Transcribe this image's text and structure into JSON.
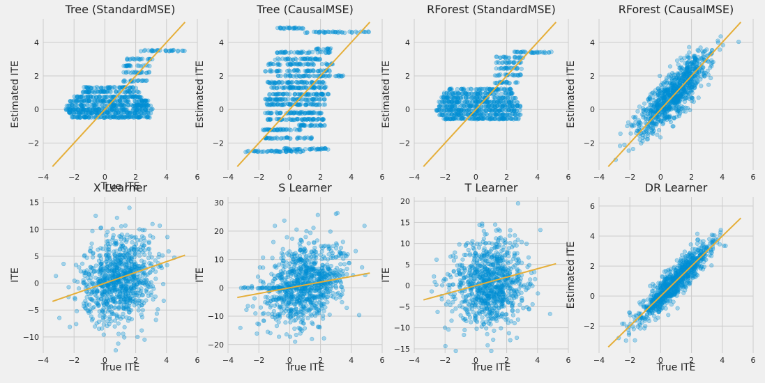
{
  "chart_data": [
    {
      "type": "scatter",
      "title": "Tree (StandardMSE)",
      "xlabel": "True ITE",
      "ylabel": "Estimated ITE",
      "xlim": [
        -4,
        6
      ],
      "ylim": [
        -3.6,
        5.4
      ],
      "xticks": [
        -4,
        -2,
        0,
        2,
        4,
        6
      ],
      "yticks": [
        -2,
        0,
        2,
        4
      ],
      "reference_line": {
        "x": [
          -3.4,
          5.2
        ],
        "y": [
          -3.4,
          5.2
        ]
      },
      "pattern": "banded",
      "bands": [
        {
          "y": -0.45,
          "xmin": -2.2,
          "xmax": 3.0,
          "n": 110
        },
        {
          "y": -0.2,
          "xmin": -2.4,
          "xmax": 3.0,
          "n": 110
        },
        {
          "y": 0.0,
          "xmin": -2.6,
          "xmax": 3.1,
          "n": 120
        },
        {
          "y": 0.25,
          "xmin": -2.5,
          "xmax": 3.0,
          "n": 110
        },
        {
          "y": 0.5,
          "xmin": -2.4,
          "xmax": 2.8,
          "n": 100
        },
        {
          "y": 0.75,
          "xmin": -2.1,
          "xmax": 2.5,
          "n": 80
        },
        {
          "y": 1.05,
          "xmin": -1.6,
          "xmax": 2.3,
          "n": 60
        },
        {
          "y": 1.3,
          "xmin": -1.4,
          "xmax": 2.1,
          "n": 50
        },
        {
          "y": 1.7,
          "xmin": 1.2,
          "xmax": 2.9,
          "n": 20
        },
        {
          "y": 2.2,
          "xmin": 1.2,
          "xmax": 2.9,
          "n": 20
        },
        {
          "y": 2.6,
          "xmin": 1.2,
          "xmax": 3.0,
          "n": 20
        },
        {
          "y": 3.0,
          "xmin": 1.3,
          "xmax": 3.1,
          "n": 20
        },
        {
          "y": 3.5,
          "xmin": 2.3,
          "xmax": 5.2,
          "n": 30
        }
      ]
    },
    {
      "type": "scatter",
      "title": "Tree (CausalMSE)",
      "xlabel": "",
      "ylabel": "Estimated ITE",
      "xlim": [
        -4,
        6
      ],
      "ylim": [
        -3.6,
        5.4
      ],
      "xticks": [
        -4,
        -2,
        0,
        2,
        4,
        6
      ],
      "yticks": [
        -2,
        0,
        2,
        4
      ],
      "reference_line": {
        "x": [
          -3.4,
          5.2
        ],
        "y": [
          -3.4,
          5.2
        ]
      },
      "pattern": "banded",
      "bands": [
        {
          "y": -2.5,
          "xmin": -3.0,
          "xmax": 1.0,
          "n": 50
        },
        {
          "y": -2.35,
          "xmin": -0.4,
          "xmax": 2.5,
          "n": 40
        },
        {
          "y": -1.7,
          "xmin": -1.6,
          "xmax": 1.6,
          "n": 40
        },
        {
          "y": -1.2,
          "xmin": -1.8,
          "xmax": 0.8,
          "n": 40
        },
        {
          "y": -0.95,
          "xmin": 0.6,
          "xmax": 2.3,
          "n": 30
        },
        {
          "y": -0.6,
          "xmin": -1.5,
          "xmax": 2.2,
          "n": 60
        },
        {
          "y": -0.2,
          "xmin": -1.8,
          "xmax": 2.1,
          "n": 60
        },
        {
          "y": 0.3,
          "xmin": -1.5,
          "xmax": 2.3,
          "n": 60
        },
        {
          "y": 0.6,
          "xmin": -1.8,
          "xmax": 2.3,
          "n": 60
        },
        {
          "y": 0.9,
          "xmin": -1.4,
          "xmax": 2.6,
          "n": 60
        },
        {
          "y": 1.3,
          "xmin": -1.2,
          "xmax": 2.4,
          "n": 60
        },
        {
          "y": 1.6,
          "xmin": -1.5,
          "xmax": 2.3,
          "n": 60
        },
        {
          "y": 2.0,
          "xmin": -1.0,
          "xmax": 3.5,
          "n": 50
        },
        {
          "y": 2.3,
          "xmin": -1.6,
          "xmax": 2.6,
          "n": 50
        },
        {
          "y": 2.7,
          "xmin": -1.4,
          "xmax": 2.8,
          "n": 50
        },
        {
          "y": 3.0,
          "xmin": -1.0,
          "xmax": 2.2,
          "n": 40
        },
        {
          "y": 3.4,
          "xmin": -0.9,
          "xmax": 2.8,
          "n": 40
        },
        {
          "y": 3.6,
          "xmin": 1.7,
          "xmax": 2.8,
          "n": 15
        },
        {
          "y": 4.6,
          "xmin": 1.0,
          "xmax": 5.2,
          "n": 40
        },
        {
          "y": 4.85,
          "xmin": -0.8,
          "xmax": 1.0,
          "n": 25
        }
      ]
    },
    {
      "type": "scatter",
      "title": "RForest (StandardMSE)",
      "xlabel": "",
      "ylabel": "Estimated ITE",
      "xlim": [
        -4,
        6
      ],
      "ylim": [
        -3.6,
        5.4
      ],
      "xticks": [
        -4,
        -2,
        0,
        2,
        4,
        6
      ],
      "yticks": [
        -2,
        0,
        2,
        4
      ],
      "reference_line": {
        "x": [
          -3.4,
          5.2
        ],
        "y": [
          -3.4,
          5.2
        ]
      },
      "pattern": "banded",
      "bands": [
        {
          "y": -0.55,
          "xmin": -2.1,
          "xmax": 2.9,
          "n": 100
        },
        {
          "y": -0.3,
          "xmin": -2.4,
          "xmax": 2.9,
          "n": 100
        },
        {
          "y": -0.05,
          "xmin": -2.6,
          "xmax": 2.9,
          "n": 110
        },
        {
          "y": 0.2,
          "xmin": -2.5,
          "xmax": 2.9,
          "n": 100
        },
        {
          "y": 0.45,
          "xmin": -2.4,
          "xmax": 2.7,
          "n": 100
        },
        {
          "y": 0.7,
          "xmin": -2.3,
          "xmax": 2.6,
          "n": 80
        },
        {
          "y": 0.95,
          "xmin": -2.1,
          "xmax": 2.4,
          "n": 70
        },
        {
          "y": 1.2,
          "xmin": -1.8,
          "xmax": 2.3,
          "n": 60
        },
        {
          "y": 1.6,
          "xmin": 1.2,
          "xmax": 2.8,
          "n": 20
        },
        {
          "y": 2.05,
          "xmin": 1.2,
          "xmax": 3.0,
          "n": 20
        },
        {
          "y": 2.45,
          "xmin": 1.2,
          "xmax": 3.0,
          "n": 20
        },
        {
          "y": 2.8,
          "xmin": 1.2,
          "xmax": 3.0,
          "n": 20
        },
        {
          "y": 3.1,
          "xmin": 1.3,
          "xmax": 3.1,
          "n": 20
        },
        {
          "y": 3.4,
          "xmin": 2.4,
          "xmax": 5.0,
          "n": 30
        }
      ]
    },
    {
      "type": "scatter",
      "title": "RForest (CausalMSE)",
      "xlabel": "",
      "ylabel": "Estimated ITE",
      "xlim": [
        -4,
        6
      ],
      "ylim": [
        -3.6,
        5.4
      ],
      "xticks": [
        -4,
        -2,
        0,
        2,
        4,
        6
      ],
      "yticks": [
        -2,
        0,
        2,
        4
      ],
      "reference_line": {
        "x": [
          -3.4,
          5.2
        ],
        "y": [
          -3.4,
          5.2
        ]
      },
      "pattern": "cloud",
      "n": 900,
      "x_mean": 0.9,
      "x_sd": 1.2,
      "slope": 0.85,
      "intercept": 0.2,
      "noise_sd": 0.7,
      "y_clip": [
        -3.0,
        4.9
      ]
    },
    {
      "type": "scatter",
      "title": "X Learner",
      "xlabel": "True ITE",
      "ylabel": "ITE",
      "xlim": [
        -4,
        6
      ],
      "ylim": [
        -13,
        16
      ],
      "xticks": [
        -4,
        -2,
        0,
        2,
        4,
        6
      ],
      "yticks": [
        -10,
        -5,
        0,
        5,
        10,
        15
      ],
      "reference_line": {
        "x": [
          -3.4,
          5.2
        ],
        "y": [
          -3.4,
          5.2
        ]
      },
      "pattern": "cloud",
      "n": 900,
      "x_mean": 0.9,
      "x_sd": 1.2,
      "slope": 0.4,
      "intercept": 0.3,
      "noise_sd": 4.0,
      "y_clip": [
        -12.5,
        14.0
      ]
    },
    {
      "type": "scatter",
      "title": "S Learner",
      "xlabel": "True ITE",
      "ylabel": "ITE",
      "xlim": [
        -4,
        6
      ],
      "ylim": [
        -23,
        32
      ],
      "xticks": [
        -4,
        -2,
        0,
        2,
        4,
        6
      ],
      "yticks": [
        -20,
        -10,
        0,
        10,
        20,
        30
      ],
      "reference_line": {
        "x": [
          -3.4,
          5.2
        ],
        "y": [
          -3.4,
          5.2
        ]
      },
      "pattern": "cloud",
      "n": 900,
      "x_mean": 1.0,
      "x_sd": 1.3,
      "slope": 1.5,
      "intercept": -0.5,
      "noise_sd": 7.0,
      "y_clip": [
        -22.0,
        28.0
      ],
      "flat_band": {
        "y": 0,
        "xmin": -3.3,
        "xmax": 0.5,
        "n": 40
      }
    },
    {
      "type": "scatter",
      "title": "T Learner",
      "xlabel": "True ITE",
      "ylabel": "ITE",
      "xlim": [
        -4,
        6
      ],
      "ylim": [
        -16,
        21
      ],
      "xticks": [
        -4,
        -2,
        0,
        2,
        4,
        6
      ],
      "yticks": [
        -15,
        -10,
        -5,
        0,
        5,
        10,
        15,
        20
      ],
      "reference_line": {
        "x": [
          -3.4,
          5.2
        ],
        "y": [
          -3.4,
          5.2
        ]
      },
      "pattern": "cloud",
      "n": 900,
      "x_mean": 0.9,
      "x_sd": 1.2,
      "slope": 0.4,
      "intercept": 0.3,
      "noise_sd": 5.2,
      "y_clip": [
        -15.5,
        19.5
      ]
    },
    {
      "type": "scatter",
      "title": "DR Learner",
      "xlabel": "True ITE",
      "ylabel": "Estimated ITE",
      "xlim": [
        -4,
        6
      ],
      "ylim": [
        -3.8,
        6.6
      ],
      "xticks": [
        -4,
        -2,
        0,
        2,
        4,
        6
      ],
      "yticks": [
        -2,
        0,
        2,
        4,
        6
      ],
      "reference_line": {
        "x": [
          -3.4,
          5.2
        ],
        "y": [
          -3.4,
          5.2
        ]
      },
      "pattern": "cloud",
      "n": 900,
      "x_mean": 0.9,
      "x_sd": 1.2,
      "slope": 1.0,
      "intercept": 0.0,
      "noise_sd": 0.5,
      "y_clip": [
        -3.4,
        6.3
      ]
    }
  ],
  "colors": {
    "points": "#008fd5",
    "reference": "#e5ae38",
    "background": "#f0f0f0",
    "grid": "#cbcbcb"
  }
}
